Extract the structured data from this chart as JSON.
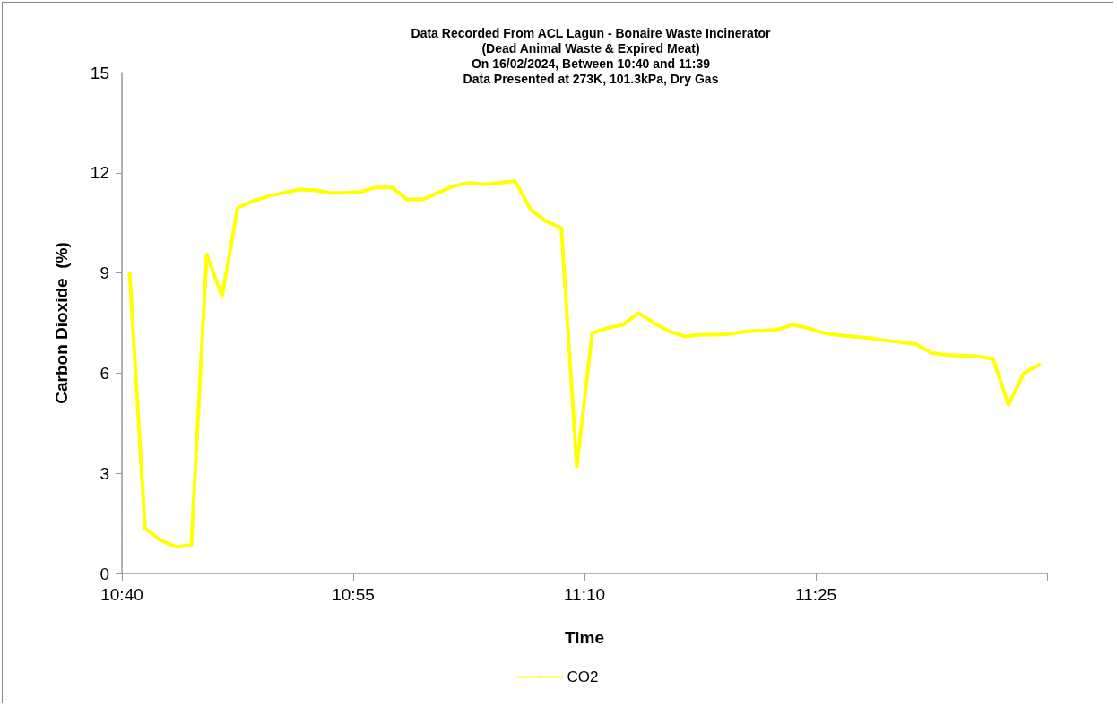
{
  "chart_data": {
    "type": "line",
    "title": "Data Recorded From ACL Lagun - Bonaire Waste Incinerator\n(Dead Animal Waste & Expired Meat)\nOn 16/02/2024, Between 10:40 and 11:39\nData Presented at 273K, 101.3kPa, Dry Gas",
    "xlabel": "Time",
    "ylabel": "Carbon Dioxide  (%)",
    "x": [
      10.675,
      10.691667,
      10.708333,
      10.725,
      10.741667,
      10.758333,
      10.775,
      10.791667,
      10.808333,
      10.825,
      10.841667,
      10.858333,
      10.875,
      10.891667,
      10.908333,
      10.925,
      10.941667,
      10.958333,
      10.975,
      10.991667,
      11.008333,
      11.025,
      11.041667,
      11.058333,
      11.075,
      11.091667,
      11.108333,
      11.125,
      11.141667,
      11.158333,
      11.175,
      11.191667,
      11.208333,
      11.225,
      11.241667,
      11.258333,
      11.275,
      11.291667,
      11.308333,
      11.325,
      11.341667,
      11.358333,
      11.375,
      11.391667,
      11.408333,
      11.425,
      11.441667,
      11.458333,
      11.475,
      11.491667,
      11.508333,
      11.525,
      11.541667,
      11.558333,
      11.575,
      11.591667,
      11.608333,
      11.625,
      11.641667,
      11.658333
    ],
    "series": [
      {
        "name": "CO2",
        "color": "#ffff00",
        "values": [
          9.0,
          1.35,
          1.0,
          0.8,
          0.85,
          9.55,
          8.3,
          10.95,
          11.15,
          11.3,
          11.4,
          11.5,
          11.48,
          11.4,
          11.4,
          11.43,
          11.56,
          11.56,
          11.2,
          11.2,
          11.4,
          11.6,
          11.7,
          11.65,
          11.7,
          11.75,
          10.9,
          10.55,
          10.35,
          3.2,
          7.2,
          7.35,
          7.45,
          7.8,
          7.5,
          7.25,
          7.1,
          7.15,
          7.15,
          7.18,
          7.25,
          7.27,
          7.3,
          7.45,
          7.35,
          7.2,
          7.14,
          7.09,
          7.05,
          6.98,
          6.93,
          6.87,
          6.6,
          6.55,
          6.52,
          6.5,
          6.42,
          5.05,
          6.0,
          6.25
        ]
      }
    ],
    "xlim": [
      10.666667,
      11.666667
    ],
    "xticks": [
      {
        "value": 10.666667,
        "label": "10:40"
      },
      {
        "value": 10.916667,
        "label": "10:55"
      },
      {
        "value": 11.166667,
        "label": "11:10"
      },
      {
        "value": 11.416667,
        "label": "11:25"
      },
      {
        "value": 11.666667,
        "label": null
      }
    ],
    "ylim": [
      0,
      15
    ],
    "yticks": [
      0,
      3,
      6,
      9,
      12,
      15
    ],
    "legend": "bottom",
    "marker": "none",
    "line_style": "solid"
  }
}
